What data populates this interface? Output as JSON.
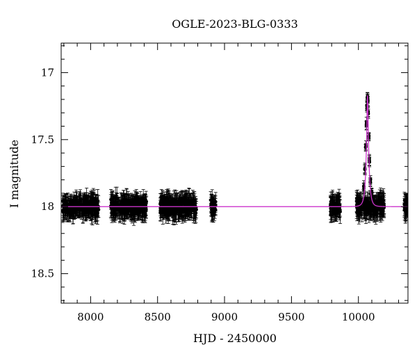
{
  "chart_data": {
    "type": "scatter",
    "title": "OGLE-2023-BLG-0333",
    "xlabel": "HJD - 2450000",
    "ylabel": "I magnitude",
    "xlim": [
      7780,
      10370
    ],
    "ylim": [
      18.72,
      16.78
    ],
    "y_inverted": true,
    "grid": false,
    "x_ticks": [
      8000,
      8500,
      9000,
      9500,
      10000
    ],
    "x_tick_labels": [
      "8000",
      "8500",
      "9000",
      "9500",
      "10000"
    ],
    "y_ticks": [
      17,
      17.5,
      18,
      18.5
    ],
    "y_tick_labels": [
      "17",
      "17.5",
      "18",
      "18.5"
    ],
    "colors": {
      "data": "#000000",
      "model": "#cc33cc"
    },
    "observing_seasons": [
      {
        "start": 7790,
        "end": 8060,
        "mag": 18.0,
        "scatter": 0.05
      },
      {
        "start": 8150,
        "end": 8420,
        "mag": 18.0,
        "scatter": 0.05
      },
      {
        "start": 8520,
        "end": 8790,
        "mag": 18.0,
        "scatter": 0.05
      },
      {
        "start": 8895,
        "end": 8935,
        "mag": 18.0,
        "scatter": 0.05
      },
      {
        "start": 9790,
        "end": 9865,
        "mag": 18.0,
        "scatter": 0.05
      },
      {
        "start": 9985,
        "end": 10195,
        "mag": 18.0,
        "scatter": 0.05
      },
      {
        "start": 10340,
        "end": 10370,
        "mag": 18.0,
        "scatter": 0.05
      }
    ],
    "model": {
      "baseline_mag": 18.0,
      "t0": 10068,
      "u0": 0.21,
      "tE": 20,
      "peak_mag": 17.17
    },
    "peak_points": [
      {
        "x": 10040,
        "y": 17.86
      },
      {
        "x": 10048,
        "y": 17.72
      },
      {
        "x": 10055,
        "y": 17.55
      },
      {
        "x": 10060,
        "y": 17.38
      },
      {
        "x": 10064,
        "y": 17.25
      },
      {
        "x": 10067,
        "y": 17.18
      },
      {
        "x": 10070,
        "y": 17.2
      },
      {
        "x": 10073,
        "y": 17.3
      },
      {
        "x": 10077,
        "y": 17.48
      },
      {
        "x": 10082,
        "y": 17.66
      },
      {
        "x": 10090,
        "y": 17.82
      },
      {
        "x": 10100,
        "y": 17.9
      }
    ]
  }
}
